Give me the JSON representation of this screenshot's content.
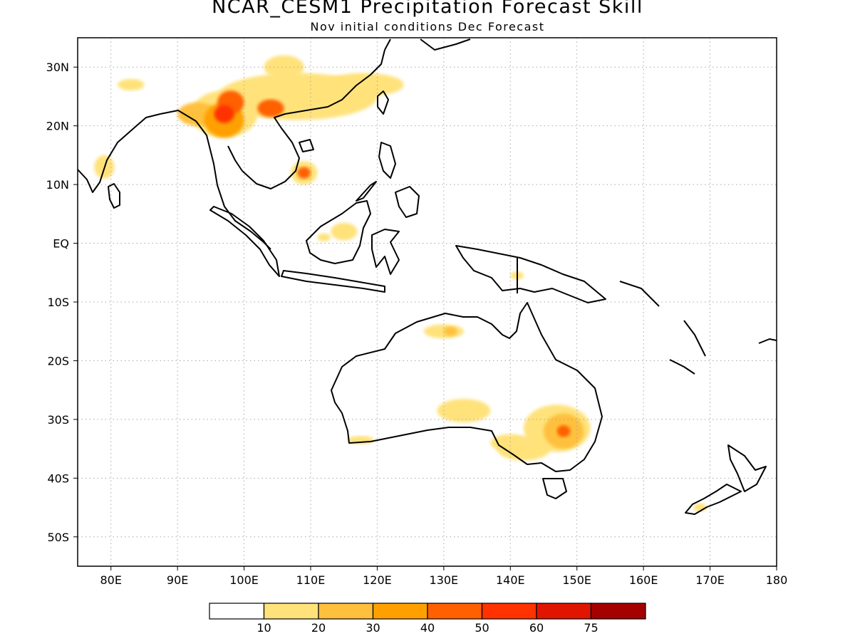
{
  "title": "NCAR_CESM1 Precipitation Forecast Skill",
  "subtitle": "Nov initial conditions  Dec Forecast",
  "map": {
    "lon_range": [
      75,
      180
    ],
    "lat_range": [
      -55,
      35
    ],
    "grid": true,
    "lon_ticks": [
      {
        "value": 80,
        "label": "80E"
      },
      {
        "value": 90,
        "label": "90E"
      },
      {
        "value": 100,
        "label": "100E"
      },
      {
        "value": 110,
        "label": "110E"
      },
      {
        "value": 120,
        "label": "120E"
      },
      {
        "value": 130,
        "label": "130E"
      },
      {
        "value": 140,
        "label": "140E"
      },
      {
        "value": 150,
        "label": "150E"
      },
      {
        "value": 160,
        "label": "160E"
      },
      {
        "value": 170,
        "label": "170E"
      },
      {
        "value": 180,
        "label": "180"
      }
    ],
    "lat_ticks": [
      {
        "value": 30,
        "label": "30N"
      },
      {
        "value": 20,
        "label": "20N"
      },
      {
        "value": 10,
        "label": "10N"
      },
      {
        "value": 0,
        "label": "EQ"
      },
      {
        "value": -10,
        "label": "10S"
      },
      {
        "value": -20,
        "label": "20S"
      },
      {
        "value": -30,
        "label": "30S"
      },
      {
        "value": -40,
        "label": "40S"
      },
      {
        "value": -50,
        "label": "50S"
      }
    ],
    "skill_patches": [
      {
        "lon": 97,
        "lat": 22,
        "rx": 5,
        "ry": 4,
        "level": 1
      },
      {
        "lon": 108,
        "lat": 25,
        "rx": 12,
        "ry": 4,
        "level": 1
      },
      {
        "lon": 118,
        "lat": 27,
        "rx": 6,
        "ry": 2,
        "level": 1
      },
      {
        "lon": 106,
        "lat": 30,
        "rx": 3,
        "ry": 2,
        "level": 1
      },
      {
        "lon": 93,
        "lat": 22,
        "rx": 3,
        "ry": 2,
        "level": 2
      },
      {
        "lon": 97,
        "lat": 21,
        "rx": 3,
        "ry": 3,
        "level": 3
      },
      {
        "lon": 98,
        "lat": 24,
        "rx": 2,
        "ry": 2,
        "level": 4
      },
      {
        "lon": 97,
        "lat": 22,
        "rx": 1.5,
        "ry": 1.5,
        "level": 5
      },
      {
        "lon": 104,
        "lat": 23,
        "rx": 2,
        "ry": 1.5,
        "level": 4
      },
      {
        "lon": 79,
        "lat": 13,
        "rx": 1.5,
        "ry": 2,
        "level": 1
      },
      {
        "lon": 109,
        "lat": 12,
        "rx": 2,
        "ry": 2,
        "level": 1
      },
      {
        "lon": 109,
        "lat": 12,
        "rx": 1,
        "ry": 1,
        "level": 4
      },
      {
        "lon": 83,
        "lat": 27,
        "rx": 2,
        "ry": 1,
        "level": 1
      },
      {
        "lon": 130,
        "lat": -15,
        "rx": 3,
        "ry": 1.2,
        "level": 1
      },
      {
        "lon": 131,
        "lat": -15,
        "rx": 1,
        "ry": 0.8,
        "level": 2
      },
      {
        "lon": 133,
        "lat": -28.5,
        "rx": 4,
        "ry": 2,
        "level": 1
      },
      {
        "lon": 147,
        "lat": -31.5,
        "rx": 5,
        "ry": 4,
        "level": 1
      },
      {
        "lon": 142,
        "lat": -35,
        "rx": 4,
        "ry": 2,
        "level": 1
      },
      {
        "lon": 148,
        "lat": -32,
        "rx": 3,
        "ry": 3,
        "level": 2
      },
      {
        "lon": 148,
        "lat": -32,
        "rx": 1,
        "ry": 1,
        "level": 4
      },
      {
        "lon": 140,
        "lat": -34,
        "rx": 3,
        "ry": 1.5,
        "level": 1
      },
      {
        "lon": 115,
        "lat": 2,
        "rx": 2,
        "ry": 1.5,
        "level": 1
      },
      {
        "lon": 117.5,
        "lat": -33.5,
        "rx": 2,
        "ry": 0.7,
        "level": 1
      },
      {
        "lon": 168.5,
        "lat": -45,
        "rx": 1,
        "ry": 0.7,
        "level": 1
      },
      {
        "lon": 141,
        "lat": -5.5,
        "rx": 1,
        "ry": 0.7,
        "level": 1
      },
      {
        "lon": 112,
        "lat": 1,
        "rx": 1,
        "ry": 0.7,
        "level": 1
      }
    ]
  },
  "colorbar": {
    "colors": [
      "#ffffff",
      "#ffe27a",
      "#ffc03e",
      "#ffa000",
      "#ff6000",
      "#ff3200",
      "#e11400",
      "#a50000"
    ],
    "labels": [
      "10",
      "20",
      "30",
      "40",
      "50",
      "60",
      "75"
    ]
  }
}
